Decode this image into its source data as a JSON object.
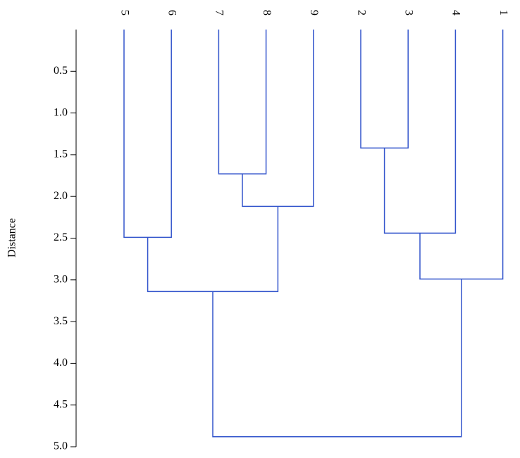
{
  "chart_data": {
    "type": "dendrogram",
    "ylabel": "Distance",
    "color": "#3355cc",
    "leaves": [
      "5",
      "6",
      "7",
      "8",
      "9",
      "2",
      "3",
      "4",
      "1"
    ],
    "merges": [
      {
        "children": [
          2,
          3
        ],
        "height": 1.73
      },
      {
        "children": [
          5,
          6
        ],
        "height": 1.42
      },
      {
        "children": [
          9,
          4
        ],
        "height": 2.12
      },
      {
        "children": [
          0,
          1
        ],
        "height": 2.49
      },
      {
        "children": [
          10,
          7
        ],
        "height": 2.44
      },
      {
        "children": [
          13,
          8
        ],
        "height": 2.99
      },
      {
        "children": [
          12,
          11
        ],
        "height": 3.14
      },
      {
        "children": [
          15,
          14
        ],
        "height": 4.88
      }
    ],
    "ylim": [
      0,
      5
    ],
    "yticks": [
      0.5,
      {
        "value": 1,
        "label": "1.0"
      },
      1.5,
      {
        "value": 2,
        "label": "2.0"
      },
      2.5,
      {
        "value": 3,
        "label": "3.0"
      },
      3.5,
      {
        "value": 4,
        "label": "4.0"
      },
      4.5,
      {
        "value": 5,
        "label": "5.0"
      }
    ]
  }
}
